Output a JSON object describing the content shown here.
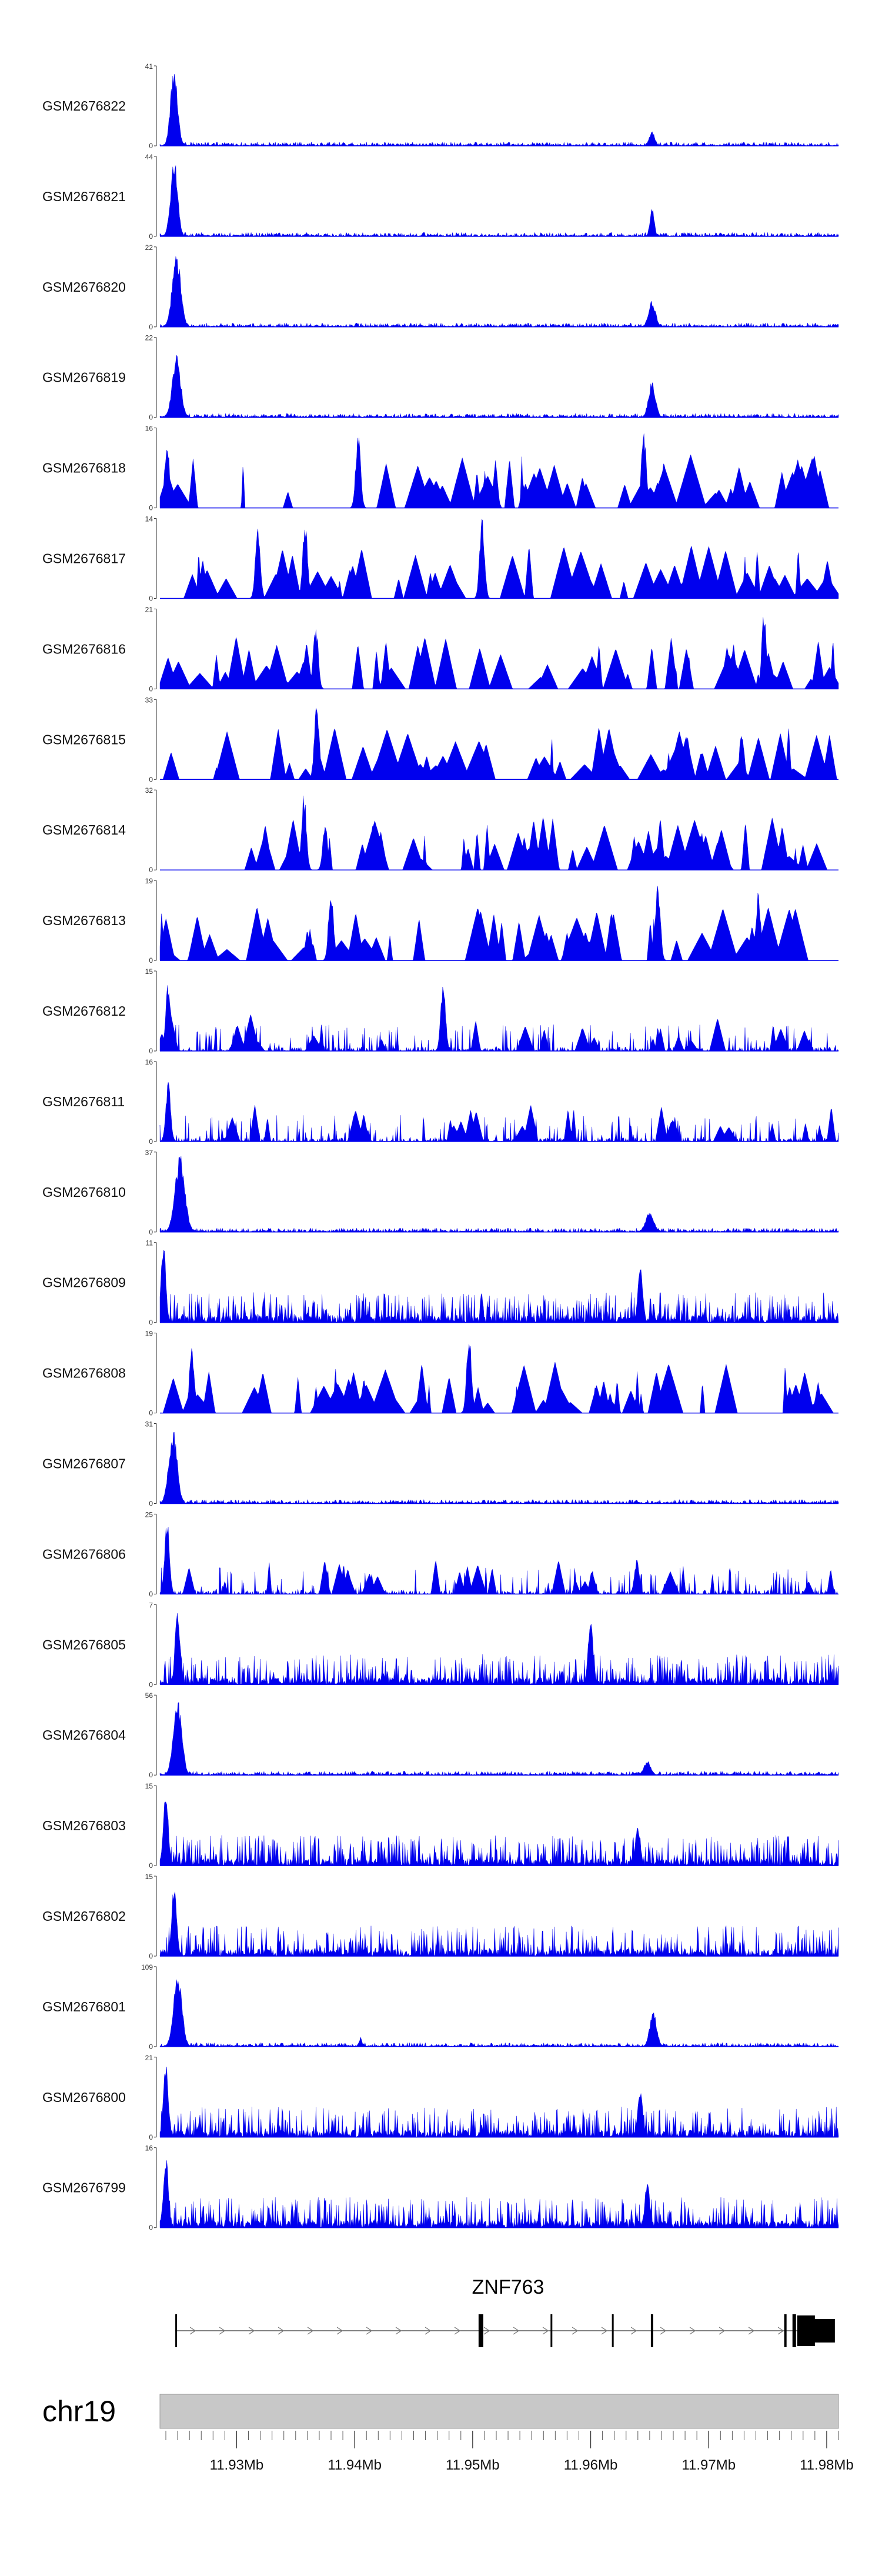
{
  "chart_data": {
    "type": "area",
    "chromosome": "chr19",
    "xlim": [
      11.9235,
      11.981
    ],
    "x_ticks": [
      {
        "value": 11.93,
        "label": "11.93Mb"
      },
      {
        "value": 11.94,
        "label": "11.94Mb"
      },
      {
        "value": 11.95,
        "label": "11.95Mb"
      },
      {
        "value": 11.96,
        "label": "11.96Mb"
      },
      {
        "value": 11.97,
        "label": "11.97Mb"
      },
      {
        "value": 11.98,
        "label": "11.98Mb"
      }
    ],
    "color": "#0000ee",
    "tracks": [
      {
        "name": "GSM2676822",
        "ymax": 41,
        "ymin": 0,
        "style": "promoter",
        "peaks": [
          {
            "x": 11.9247,
            "h": 1.0,
            "w": 0.0005
          },
          {
            "x": 11.9652,
            "h": 0.18,
            "w": 0.0004
          }
        ]
      },
      {
        "name": "GSM2676821",
        "ymax": 44,
        "ymin": 0,
        "style": "promoter",
        "peaks": [
          {
            "x": 11.9247,
            "h": 1.0,
            "w": 0.0005
          },
          {
            "x": 11.9652,
            "h": 0.38,
            "w": 0.0003
          }
        ]
      },
      {
        "name": "GSM2676820",
        "ymax": 22,
        "ymin": 0,
        "style": "promoter",
        "peaks": [
          {
            "x": 11.9249,
            "h": 0.95,
            "w": 0.0006
          },
          {
            "x": 11.9652,
            "h": 0.33,
            "w": 0.0005
          }
        ]
      },
      {
        "name": "GSM2676819",
        "ymax": 22,
        "ymin": 0,
        "style": "promoter",
        "peaks": [
          {
            "x": 11.9249,
            "h": 0.8,
            "w": 0.0006
          },
          {
            "x": 11.9652,
            "h": 0.45,
            "w": 0.0005
          }
        ]
      },
      {
        "name": "GSM2676818",
        "ymax": 16,
        "ymin": 0,
        "style": "sparse",
        "peaks": [
          {
            "x": 11.9241,
            "h": 0.9
          },
          {
            "x": 11.9403,
            "h": 0.95
          },
          {
            "x": 11.9645,
            "h": 1.0
          }
        ]
      },
      {
        "name": "GSM2676817",
        "ymax": 14,
        "ymin": 0,
        "style": "sparse",
        "peaks": [
          {
            "x": 11.9318,
            "h": 0.95
          },
          {
            "x": 11.9358,
            "h": 1.0
          },
          {
            "x": 11.9508,
            "h": 1.0
          }
        ]
      },
      {
        "name": "GSM2676816",
        "ymax": 21,
        "ymin": 0,
        "style": "sparse",
        "peaks": [
          {
            "x": 11.9367,
            "h": 0.85
          },
          {
            "x": 11.9747,
            "h": 1.0
          }
        ]
      },
      {
        "name": "GSM2676815",
        "ymax": 33,
        "ymin": 0,
        "style": "sparse",
        "peaks": [
          {
            "x": 11.9368,
            "h": 1.0
          },
          {
            "x": 11.9728,
            "h": 0.6
          }
        ]
      },
      {
        "name": "GSM2676814",
        "ymax": 32,
        "ymin": 0,
        "style": "sparse",
        "peaks": [
          {
            "x": 11.9357,
            "h": 1.0
          },
          {
            "x": 11.9375,
            "h": 0.6
          }
        ]
      },
      {
        "name": "GSM2676813",
        "ymax": 19,
        "ymin": 0,
        "style": "sparse",
        "peaks": [
          {
            "x": 11.938,
            "h": 0.95
          },
          {
            "x": 11.9657,
            "h": 1.0
          },
          {
            "x": 11.9742,
            "h": 0.9
          }
        ]
      },
      {
        "name": "GSM2676812",
        "ymax": 15,
        "ymin": 0,
        "style": "mixed",
        "peaks": [
          {
            "x": 11.9242,
            "h": 0.9
          },
          {
            "x": 11.9475,
            "h": 0.85
          }
        ]
      },
      {
        "name": "GSM2676811",
        "ymax": 16,
        "ymin": 0,
        "style": "mixed",
        "peaks": [
          {
            "x": 11.9242,
            "h": 0.75
          }
        ]
      },
      {
        "name": "GSM2676810",
        "ymax": 37,
        "ymin": 0,
        "style": "promoter",
        "peaks": [
          {
            "x": 11.9252,
            "h": 0.98,
            "w": 0.0007
          },
          {
            "x": 11.965,
            "h": 0.25,
            "w": 0.0006
          }
        ]
      },
      {
        "name": "GSM2676809",
        "ymax": 11,
        "ymin": 0,
        "style": "dense",
        "peaks": [
          {
            "x": 11.9238,
            "h": 1.0
          },
          {
            "x": 11.9642,
            "h": 0.75
          }
        ]
      },
      {
        "name": "GSM2676808",
        "ymax": 19,
        "ymin": 0,
        "style": "sparse",
        "peaks": [
          {
            "x": 11.9497,
            "h": 1.0
          },
          {
            "x": 11.9262,
            "h": 0.85
          }
        ]
      },
      {
        "name": "GSM2676807",
        "ymax": 31,
        "ymin": 0,
        "style": "promoter",
        "peaks": [
          {
            "x": 11.9246,
            "h": 0.95,
            "w": 0.0006
          }
        ]
      },
      {
        "name": "GSM2676806",
        "ymax": 25,
        "ymin": 0,
        "style": "mixed",
        "peaks": [
          {
            "x": 11.9241,
            "h": 0.95
          },
          {
            "x": 11.9639,
            "h": 0.45
          }
        ]
      },
      {
        "name": "GSM2676805",
        "ymax": 7,
        "ymin": 0,
        "style": "dense",
        "peaks": [
          {
            "x": 11.925,
            "h": 1.0
          },
          {
            "x": 11.96,
            "h": 0.9
          }
        ]
      },
      {
        "name": "GSM2676804",
        "ymax": 56,
        "ymin": 0,
        "style": "promoter",
        "peaks": [
          {
            "x": 11.925,
            "h": 0.98,
            "w": 0.0006
          },
          {
            "x": 11.9648,
            "h": 0.18,
            "w": 0.0005
          }
        ]
      },
      {
        "name": "GSM2676803",
        "ymax": 15,
        "ymin": 0,
        "style": "dense",
        "peaks": [
          {
            "x": 11.924,
            "h": 0.95
          },
          {
            "x": 11.964,
            "h": 0.55
          }
        ]
      },
      {
        "name": "GSM2676802",
        "ymax": 15,
        "ymin": 0,
        "style": "dense",
        "peaks": [
          {
            "x": 11.9247,
            "h": 0.95
          }
        ]
      },
      {
        "name": "GSM2676801",
        "ymax": 109,
        "ymin": 0,
        "style": "promoter",
        "peaks": [
          {
            "x": 11.925,
            "h": 0.95,
            "w": 0.0006
          },
          {
            "x": 11.9653,
            "h": 0.45,
            "w": 0.0005
          },
          {
            "x": 11.9405,
            "h": 0.12,
            "w": 0.0002
          }
        ]
      },
      {
        "name": "GSM2676800",
        "ymax": 21,
        "ymin": 0,
        "style": "dense",
        "peaks": [
          {
            "x": 11.924,
            "h": 0.95
          },
          {
            "x": 11.9642,
            "h": 0.6
          }
        ]
      },
      {
        "name": "GSM2676799",
        "ymax": 16,
        "ymin": 0,
        "style": "dense",
        "peaks": [
          {
            "x": 11.924,
            "h": 0.95
          },
          {
            "x": 11.9648,
            "h": 0.6
          }
        ]
      }
    ],
    "gene": {
      "name": "ZNF763",
      "strand": "+",
      "start": 11.9248,
      "end": 11.979,
      "exons": [
        {
          "start": 11.9248,
          "end": 11.92495
        },
        {
          "start": 11.9505,
          "end": 11.9509
        },
        {
          "start": 11.9566,
          "end": 11.95675
        },
        {
          "start": 11.9618,
          "end": 11.96195
        },
        {
          "start": 11.9651,
          "end": 11.9653
        },
        {
          "start": 11.9764,
          "end": 11.9766
        },
        {
          "start": 11.9771,
          "end": 11.9774
        },
        {
          "start": 11.9775,
          "end": 11.979
        }
      ]
    }
  }
}
